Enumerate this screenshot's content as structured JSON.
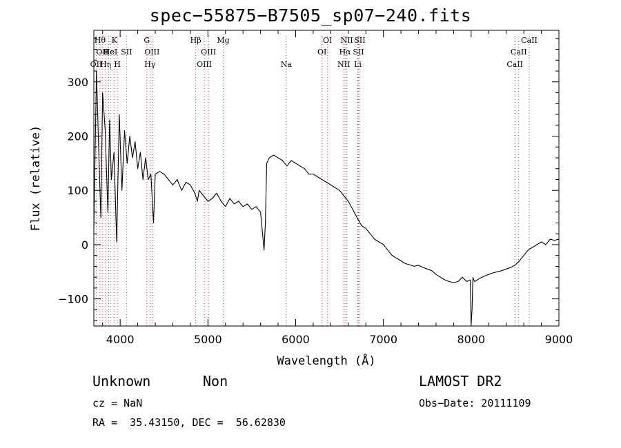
{
  "title": "spec−55875−B7505_sp07−240.fits",
  "info": {
    "class": "Unknown",
    "subclass": "Non",
    "cz": "cz = NaN",
    "radec": "RA =  35.43150, DEC =  56.62830",
    "survey": "LAMOST DR2",
    "obs_date": "Obs−Date: 20111109"
  },
  "chart_data": {
    "type": "line",
    "title": "spec−55875−B7505_sp07−240.fits",
    "xlabel": "Wavelength (Å)",
    "ylabel": "Flux (relative)",
    "xlim": [
      3700,
      9000
    ],
    "ylim": [
      -150,
      395
    ],
    "xticks": [
      4000,
      5000,
      6000,
      7000,
      8000,
      9000
    ],
    "yticks": [
      -100,
      0,
      100,
      200,
      300
    ],
    "ytick_labels": [
      "−100",
      "0",
      "100",
      "200",
      "300"
    ],
    "grid": false,
    "series": [
      {
        "x": [
          3700,
          3730,
          3760,
          3780,
          3800,
          3830,
          3860,
          3880,
          3900,
          3930,
          3960,
          3990,
          4020,
          4050,
          4080,
          4110,
          4140,
          4170,
          4200,
          4230,
          4260,
          4290,
          4320,
          4350,
          4380,
          4400,
          4450,
          4500,
          4550,
          4600,
          4650,
          4700,
          4750,
          4800,
          4850,
          4880,
          4900,
          4950,
          5000,
          5050,
          5100,
          5150,
          5200,
          5250,
          5300,
          5350,
          5400,
          5450,
          5500,
          5550,
          5600,
          5640,
          5655,
          5670,
          5700,
          5750,
          5800,
          5850,
          5900,
          5950,
          6000,
          6050,
          6100,
          6150,
          6200,
          6250,
          6300,
          6350,
          6400,
          6450,
          6500,
          6550,
          6600,
          6650,
          6700,
          6750,
          6800,
          6850,
          6900,
          6950,
          7000,
          7050,
          7100,
          7150,
          7200,
          7250,
          7300,
          7350,
          7400,
          7450,
          7500,
          7550,
          7600,
          7650,
          7700,
          7750,
          7800,
          7850,
          7900,
          7950,
          7990,
          8000,
          8010,
          8020,
          8030,
          8040,
          8060,
          8100,
          8150,
          8200,
          8250,
          8300,
          8350,
          8400,
          8450,
          8500,
          8550,
          8600,
          8650,
          8700,
          8750,
          8800,
          8850,
          8900,
          8950,
          9000
        ],
        "y": [
          30,
          320,
          150,
          50,
          280,
          210,
          60,
          230,
          120,
          170,
          5,
          240,
          100,
          210,
          150,
          200,
          160,
          190,
          140,
          170,
          120,
          160,
          120,
          130,
          40,
          130,
          135,
          130,
          120,
          110,
          120,
          100,
          115,
          110,
          95,
          80,
          100,
          90,
          80,
          85,
          95,
          80,
          70,
          85,
          75,
          80,
          70,
          75,
          65,
          70,
          60,
          -10,
          40,
          150,
          160,
          165,
          160,
          155,
          145,
          155,
          150,
          145,
          140,
          130,
          130,
          125,
          120,
          115,
          110,
          105,
          100,
          90,
          80,
          65,
          50,
          35,
          30,
          20,
          10,
          5,
          0,
          -10,
          -20,
          -25,
          -30,
          -35,
          -37,
          -40,
          -38,
          -42,
          -45,
          -48,
          -55,
          -60,
          -65,
          -68,
          -70,
          -68,
          -60,
          -68,
          -65,
          -148,
          -120,
          -60,
          -65,
          -68,
          -66,
          -62,
          -58,
          -55,
          -52,
          -50,
          -48,
          -45,
          -42,
          -38,
          -30,
          -20,
          -10,
          -5,
          0,
          5,
          0,
          10,
          8,
          10
        ]
      }
    ],
    "lines": [
      {
        "wl": 3727,
        "row": 2,
        "label": "OII"
      },
      {
        "wl": 3770,
        "row": 0,
        "label": "Hθ"
      },
      {
        "wl": 3797,
        "row": 1,
        "label": "OII"
      },
      {
        "wl": 3835,
        "row": 2,
        "label": "Hη"
      },
      {
        "wl": 3869,
        "row": 1,
        "label": "He"
      },
      {
        "wl": 3889,
        "row": 1,
        "label": "HeI"
      },
      {
        "wl": 3934,
        "row": 0,
        "label": "K"
      },
      {
        "wl": 3968,
        "row": 2,
        "label": "H"
      },
      {
        "wl": 4072,
        "row": 1,
        "label": "SII"
      },
      {
        "wl": 4304,
        "row": 0,
        "label": "G"
      },
      {
        "wl": 4340,
        "row": 2,
        "label": "Hγ"
      },
      {
        "wl": 4363,
        "row": 1,
        "label": "OIII"
      },
      {
        "wl": 4861,
        "row": 0,
        "label": "Hβ"
      },
      {
        "wl": 4959,
        "row": 2,
        "label": "OIII"
      },
      {
        "wl": 5007,
        "row": 1,
        "label": "OIII"
      },
      {
        "wl": 5175,
        "row": 0,
        "label": "Mg"
      },
      {
        "wl": 5893,
        "row": 2,
        "label": "Na"
      },
      {
        "wl": 6300,
        "row": 1,
        "label": "OI"
      },
      {
        "wl": 6363,
        "row": 0,
        "label": "OI"
      },
      {
        "wl": 6548,
        "row": 2,
        "label": "NII"
      },
      {
        "wl": 6563,
        "row": 1,
        "label": "Hα"
      },
      {
        "wl": 6583,
        "row": 0,
        "label": "NII"
      },
      {
        "wl": 6708,
        "row": 2,
        "label": "Li"
      },
      {
        "wl": 6716,
        "row": 1,
        "label": "SII"
      },
      {
        "wl": 6731,
        "row": 0,
        "label": "SII"
      },
      {
        "wl": 8498,
        "row": 2,
        "label": "CaII"
      },
      {
        "wl": 8542,
        "row": 1,
        "label": "CaII"
      },
      {
        "wl": 8662,
        "row": 0,
        "label": "CaII"
      }
    ]
  }
}
